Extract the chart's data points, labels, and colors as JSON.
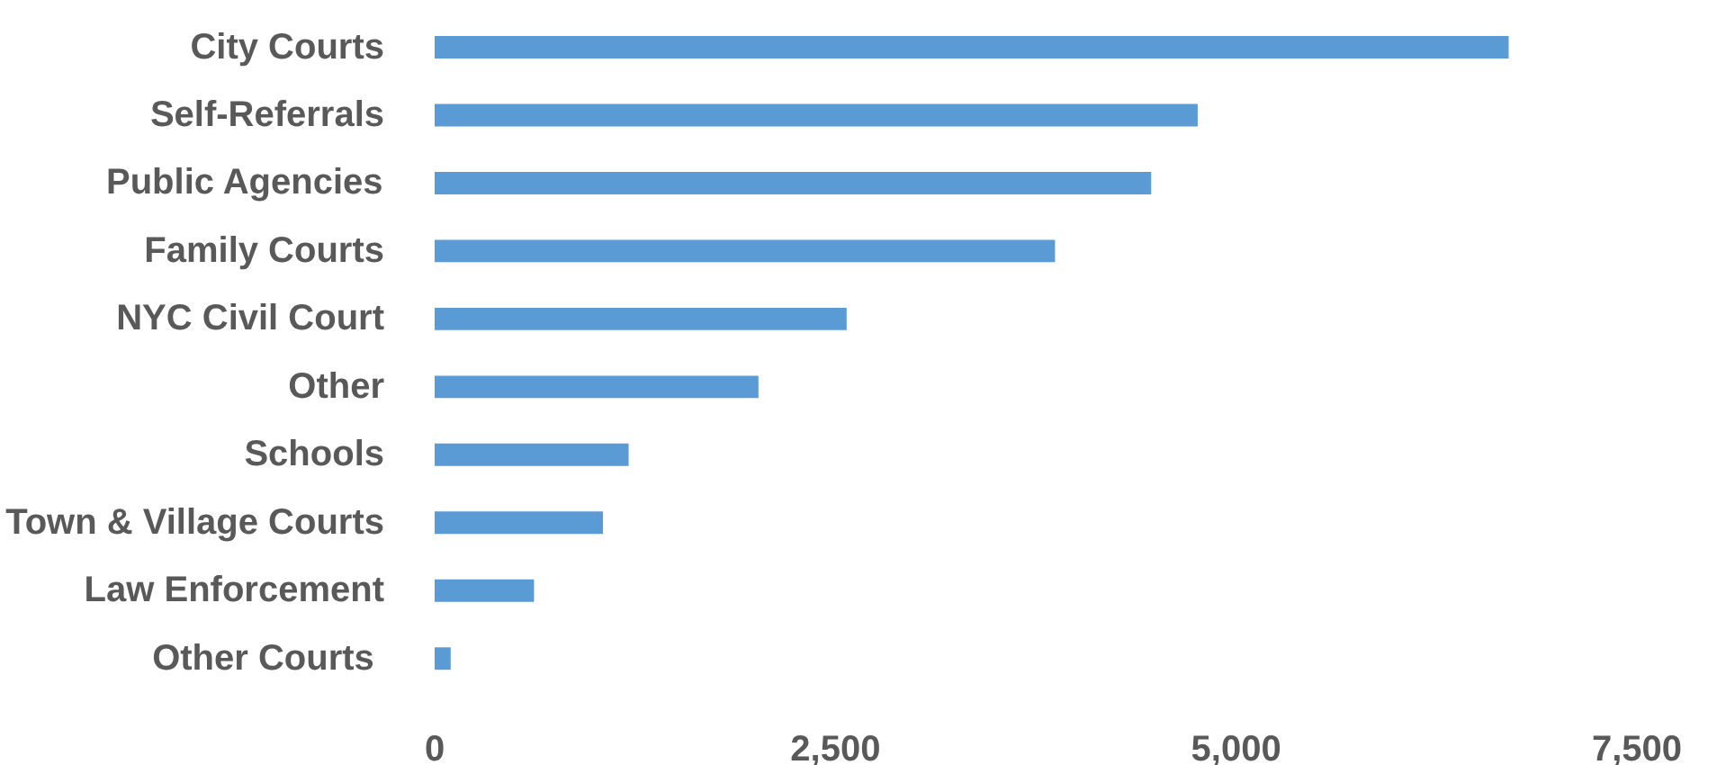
{
  "chart_data": {
    "type": "bar",
    "orientation": "horizontal",
    "categories": [
      "City Courts",
      "Self-Referrals",
      "Public Agencies",
      "Family Courts",
      "NYC Civil Court",
      "Other",
      "Schools",
      "Town & Village Courts",
      "Law Enforcement",
      "Other  Courts"
    ],
    "values": [
      6700,
      4760,
      4470,
      3870,
      2570,
      2020,
      1210,
      1050,
      620,
      100
    ],
    "color": "#5b9bd5",
    "xlim": [
      0,
      7500
    ],
    "xticks": [
      0,
      {
        "value": 2500,
        "label": "2,500"
      },
      {
        "value": 5000,
        "label": "5,000"
      },
      {
        "value": 7500,
        "label": "7,500"
      }
    ],
    "grid": false
  }
}
